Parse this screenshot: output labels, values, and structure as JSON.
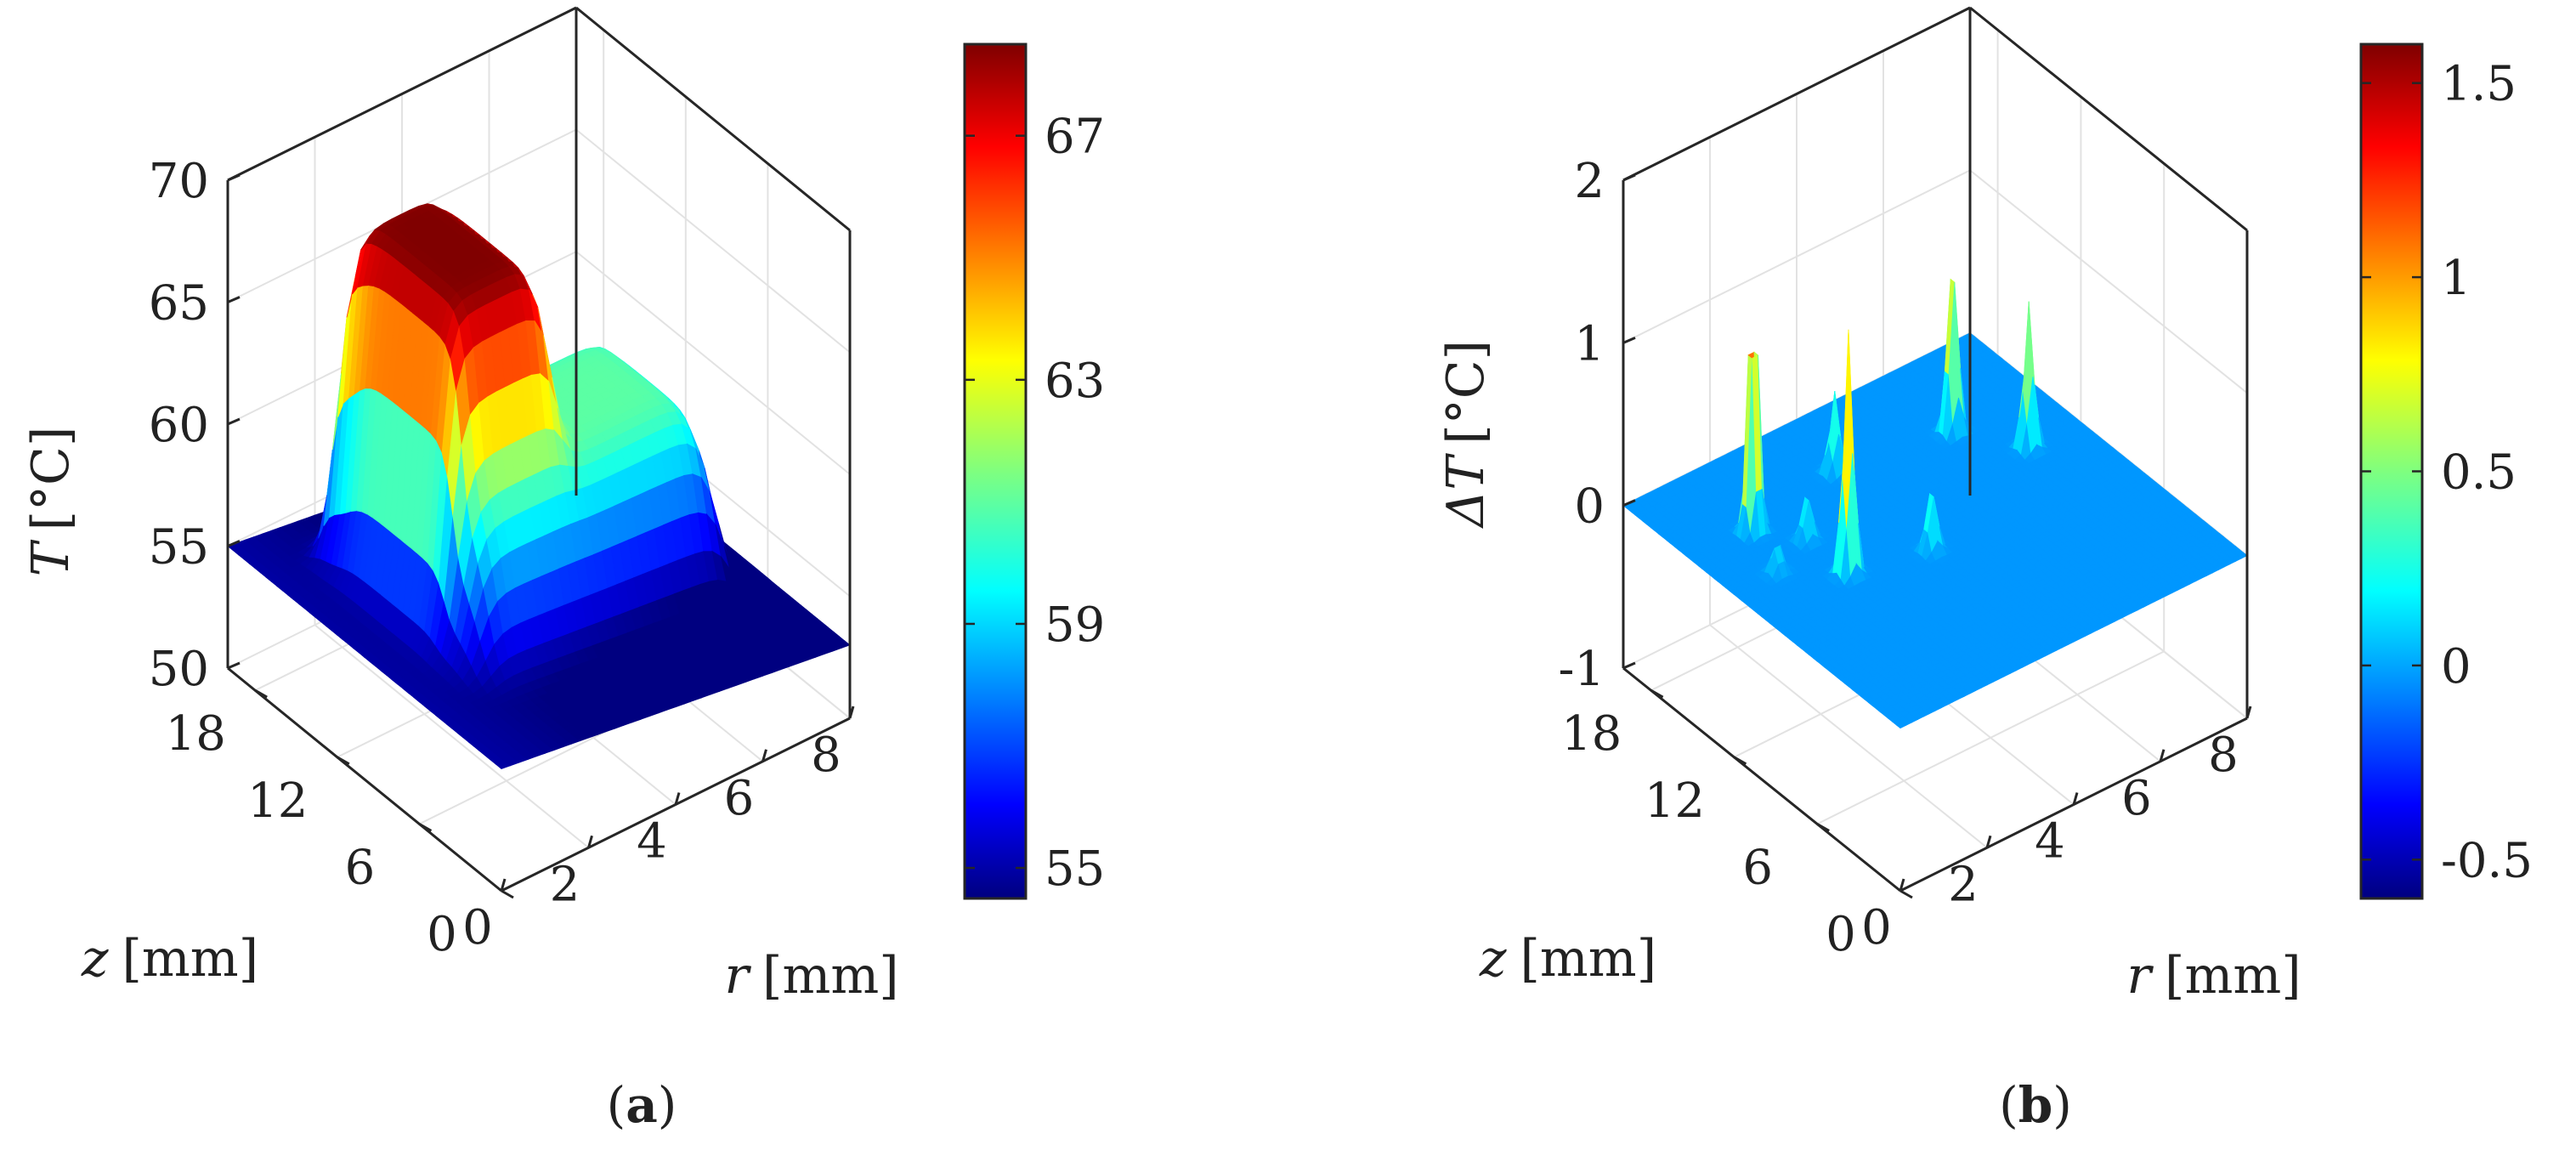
{
  "chart_data": [
    {
      "type": "surface",
      "panel_label": "(a)",
      "panel_letter": "a",
      "zlabel_var": "T",
      "zlabel_unit": "[°C]",
      "xlabel_var": "r",
      "xlabel_unit": "[mm]",
      "ylabel_var": "z",
      "ylabel_unit": "[mm]",
      "r_ticks": [
        "0",
        "2",
        "4",
        "6",
        "8"
      ],
      "z_ticks": [
        "0",
        "6",
        "12",
        "18"
      ],
      "t_ticks": [
        "50",
        "55",
        "60",
        "65",
        "70"
      ],
      "r_range": [
        0,
        8
      ],
      "z_range": [
        0,
        20
      ],
      "t_range": [
        50,
        70
      ],
      "grid": true,
      "colormap": "jet",
      "colorbar": {
        "ticks": [
          "55",
          "59",
          "63",
          "67"
        ],
        "range": [
          54.5,
          68.5
        ]
      },
      "surface_description_values": {
        "base_at_r0": 55,
        "peak_region_r_range": [
          1.4,
          3.8
        ],
        "peak_region_z_range": [
          8,
          17
        ],
        "peak_value": 68.5,
        "plateau_region_r_range": [
          1.4,
          7
        ],
        "plateau_region_z_range": [
          6,
          15
        ],
        "plateau_value": 61,
        "edge_value": 53
      }
    },
    {
      "type": "surface",
      "panel_label": "(b)",
      "panel_letter": "b",
      "zlabel_var": "ΔT",
      "zlabel_unit": "[°C]",
      "xlabel_var": "r",
      "xlabel_unit": "[mm]",
      "ylabel_var": "z",
      "ylabel_unit": "[mm]",
      "r_ticks": [
        "0",
        "2",
        "4",
        "6",
        "8"
      ],
      "z_ticks": [
        "0",
        "6",
        "12",
        "18"
      ],
      "t_ticks": [
        "-1",
        "0",
        "1",
        "2"
      ],
      "r_range": [
        0,
        8
      ],
      "z_range": [
        0,
        20
      ],
      "t_range": [
        -1,
        2
      ],
      "grid": true,
      "colormap": "jet",
      "colorbar": {
        "ticks": [
          "-0.5",
          "0",
          "0.5",
          "1",
          "1.5"
        ],
        "range": [
          -0.6,
          1.6
        ]
      },
      "spikes": [
        {
          "r": 1.4,
          "z": 15,
          "dT": 1.6
        },
        {
          "r": 2.0,
          "z": 10,
          "dT": 1.5
        },
        {
          "r": 3.6,
          "z": 16,
          "dT": 0.5
        },
        {
          "r": 3.6,
          "z": 9,
          "dT": 0.4
        },
        {
          "r": 6.0,
          "z": 15,
          "dT": 1.1
        },
        {
          "r": 6.8,
          "z": 12,
          "dT": 0.9
        },
        {
          "r": 2.0,
          "z": 13,
          "dT": 0.3
        },
        {
          "r": 1.0,
          "z": 12,
          "dT": 0.2
        }
      ]
    }
  ]
}
